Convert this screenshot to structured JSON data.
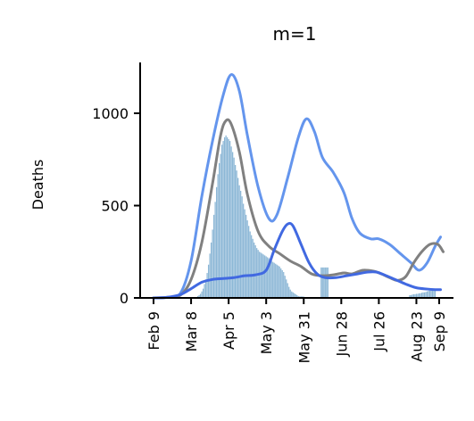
{
  "chart_data": {
    "type": "line",
    "title": "m=1",
    "ylabel": "Deaths",
    "xlabel": "",
    "ylim": [
      0,
      1280
    ],
    "yticks": [
      0,
      500,
      1000
    ],
    "xticks": [
      "Feb 9",
      "Mar 8",
      "Apr 5",
      "May 3",
      "May 31",
      "Jun 28",
      "Jul 26",
      "Aug 23",
      "Sep 9"
    ],
    "xtick_days": [
      0,
      28,
      56,
      84,
      112,
      140,
      168,
      196,
      213
    ],
    "x_start_date": "2020-02-09",
    "grid": false,
    "legend": "none",
    "colors": {
      "bars": "#8cb7d6",
      "grey": "#808080",
      "light_blue": "#6495ed",
      "dark_blue": "#4169e1"
    },
    "series": [
      {
        "style": "line",
        "color": "#6495ed",
        "points": [
          [
            0,
            0
          ],
          [
            10,
            3
          ],
          [
            20,
            25
          ],
          [
            28,
            200
          ],
          [
            36,
            550
          ],
          [
            44,
            850
          ],
          [
            52,
            1100
          ],
          [
            58,
            1210
          ],
          [
            64,
            1120
          ],
          [
            70,
            880
          ],
          [
            78,
            600
          ],
          [
            86,
            430
          ],
          [
            92,
            450
          ],
          [
            100,
            650
          ],
          [
            108,
            870
          ],
          [
            114,
            970
          ],
          [
            120,
            900
          ],
          [
            126,
            760
          ],
          [
            134,
            680
          ],
          [
            142,
            570
          ],
          [
            148,
            430
          ],
          [
            154,
            350
          ],
          [
            162,
            320
          ],
          [
            168,
            320
          ],
          [
            176,
            290
          ],
          [
            184,
            240
          ],
          [
            192,
            190
          ],
          [
            198,
            150
          ],
          [
            204,
            190
          ],
          [
            210,
            280
          ],
          [
            214,
            330
          ]
        ]
      },
      {
        "style": "line",
        "color": "#808080",
        "points": [
          [
            0,
            0
          ],
          [
            10,
            3
          ],
          [
            20,
            15
          ],
          [
            28,
            100
          ],
          [
            36,
            300
          ],
          [
            44,
            620
          ],
          [
            50,
            880
          ],
          [
            54,
            960
          ],
          [
            58,
            940
          ],
          [
            64,
            790
          ],
          [
            70,
            560
          ],
          [
            78,
            360
          ],
          [
            86,
            280
          ],
          [
            94,
            240
          ],
          [
            102,
            200
          ],
          [
            110,
            170
          ],
          [
            118,
            130
          ],
          [
            126,
            120
          ],
          [
            134,
            125
          ],
          [
            142,
            135
          ],
          [
            148,
            130
          ],
          [
            156,
            150
          ],
          [
            164,
            145
          ],
          [
            170,
            130
          ],
          [
            176,
            110
          ],
          [
            182,
            95
          ],
          [
            188,
            115
          ],
          [
            194,
            190
          ],
          [
            200,
            250
          ],
          [
            206,
            290
          ],
          [
            212,
            290
          ],
          [
            216,
            250
          ]
        ]
      },
      {
        "style": "line",
        "color": "#4169e1",
        "points": [
          [
            0,
            0
          ],
          [
            10,
            3
          ],
          [
            20,
            18
          ],
          [
            28,
            50
          ],
          [
            36,
            85
          ],
          [
            44,
            100
          ],
          [
            52,
            105
          ],
          [
            60,
            110
          ],
          [
            68,
            120
          ],
          [
            76,
            125
          ],
          [
            84,
            150
          ],
          [
            90,
            260
          ],
          [
            96,
            360
          ],
          [
            100,
            400
          ],
          [
            104,
            390
          ],
          [
            110,
            290
          ],
          [
            116,
            190
          ],
          [
            122,
            130
          ],
          [
            128,
            110
          ],
          [
            136,
            110
          ],
          [
            144,
            120
          ],
          [
            152,
            130
          ],
          [
            160,
            140
          ],
          [
            166,
            140
          ],
          [
            172,
            125
          ],
          [
            180,
            100
          ],
          [
            188,
            75
          ],
          [
            196,
            55
          ],
          [
            204,
            48
          ],
          [
            210,
            45
          ],
          [
            214,
            45
          ]
        ]
      },
      {
        "style": "bars",
        "color": "#8cb7d6",
        "points": [
          [
            33,
            10
          ],
          [
            34,
            15
          ],
          [
            35,
            22
          ],
          [
            36,
            35
          ],
          [
            37,
            50
          ],
          [
            38,
            75
          ],
          [
            39,
            100
          ],
          [
            40,
            135
          ],
          [
            41,
            180
          ],
          [
            42,
            240
          ],
          [
            43,
            300
          ],
          [
            44,
            370
          ],
          [
            45,
            450
          ],
          [
            46,
            520
          ],
          [
            47,
            600
          ],
          [
            48,
            670
          ],
          [
            49,
            730
          ],
          [
            50,
            780
          ],
          [
            51,
            830
          ],
          [
            52,
            850
          ],
          [
            53,
            870
          ],
          [
            54,
            880
          ],
          [
            55,
            870
          ],
          [
            56,
            860
          ],
          [
            57,
            850
          ],
          [
            58,
            820
          ],
          [
            59,
            790
          ],
          [
            60,
            760
          ],
          [
            61,
            720
          ],
          [
            62,
            690
          ],
          [
            63,
            650
          ],
          [
            64,
            610
          ],
          [
            65,
            580
          ],
          [
            66,
            550
          ],
          [
            67,
            510
          ],
          [
            68,
            480
          ],
          [
            69,
            450
          ],
          [
            70,
            420
          ],
          [
            71,
            390
          ],
          [
            72,
            360
          ],
          [
            73,
            340
          ],
          [
            74,
            320
          ],
          [
            75,
            300
          ],
          [
            76,
            285
          ],
          [
            77,
            270
          ],
          [
            78,
            260
          ],
          [
            79,
            250
          ],
          [
            80,
            245
          ],
          [
            81,
            240
          ],
          [
            82,
            235
          ],
          [
            83,
            230
          ],
          [
            84,
            225
          ],
          [
            85,
            220
          ],
          [
            86,
            215
          ],
          [
            87,
            210
          ],
          [
            88,
            200
          ],
          [
            89,
            195
          ],
          [
            90,
            190
          ],
          [
            91,
            185
          ],
          [
            92,
            180
          ],
          [
            93,
            175
          ],
          [
            94,
            170
          ],
          [
            95,
            160
          ],
          [
            96,
            150
          ],
          [
            97,
            140
          ],
          [
            98,
            120
          ],
          [
            99,
            100
          ],
          [
            100,
            80
          ],
          [
            101,
            60
          ],
          [
            102,
            45
          ],
          [
            103,
            35
          ],
          [
            104,
            30
          ],
          [
            105,
            25
          ],
          [
            106,
            20
          ],
          [
            107,
            15
          ],
          [
            108,
            10
          ],
          [
            109,
            8
          ],
          [
            110,
            8
          ],
          [
            111,
            8
          ],
          [
            112,
            7
          ],
          [
            125,
            165
          ],
          [
            126,
            165
          ],
          [
            127,
            165
          ],
          [
            128,
            165
          ],
          [
            129,
            165
          ],
          [
            130,
            165
          ],
          [
            191,
            15
          ],
          [
            192,
            15
          ],
          [
            193,
            18
          ],
          [
            194,
            20
          ],
          [
            195,
            20
          ],
          [
            196,
            22
          ],
          [
            197,
            22
          ],
          [
            198,
            25
          ],
          [
            199,
            25
          ],
          [
            200,
            28
          ],
          [
            201,
            30
          ],
          [
            202,
            30
          ],
          [
            203,
            32
          ],
          [
            204,
            35
          ],
          [
            205,
            38
          ],
          [
            206,
            40
          ],
          [
            207,
            42
          ],
          [
            208,
            45
          ],
          [
            209,
            48
          ],
          [
            210,
            50
          ]
        ]
      }
    ]
  }
}
